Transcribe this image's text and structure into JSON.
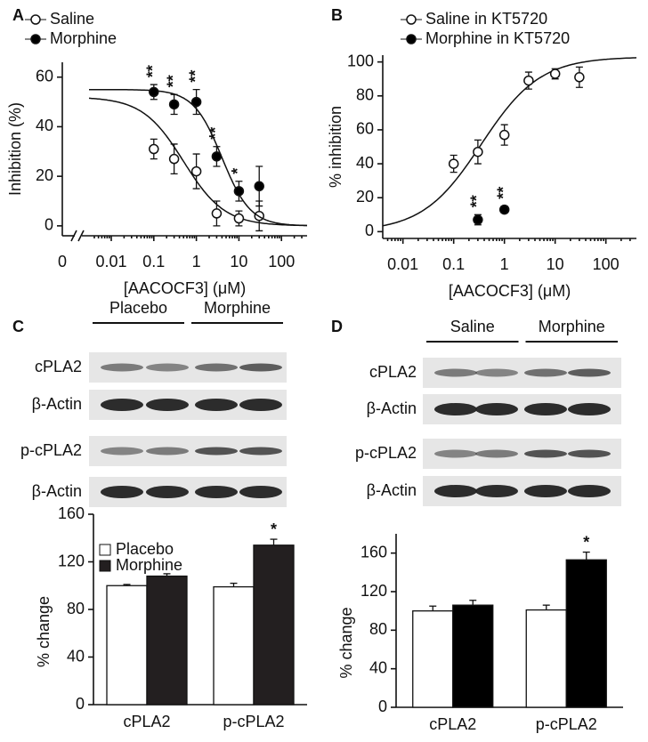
{
  "chart_data": [
    {
      "type": "scatter",
      "panel_label": "A",
      "x_label": "[AACOCF3] (μM)",
      "y_label": "Inhibition (%)",
      "xscale": "log",
      "xlim": [
        0.003,
        400
      ],
      "xticks": [
        0.01,
        0.1,
        1,
        10,
        100
      ],
      "xbreak_label": "0",
      "ylim": [
        -4,
        66
      ],
      "yticks": [
        0,
        20,
        40,
        60
      ],
      "series": [
        {
          "name": "Saline",
          "color": "#ffffff",
          "x": [
            0.1,
            0.3,
            1,
            3,
            10,
            30
          ],
          "values": [
            31,
            27,
            22,
            5,
            3,
            4
          ],
          "errors": [
            4,
            6,
            7,
            5,
            3,
            6
          ],
          "fit": {
            "bottom": 0,
            "top": 52,
            "x50": 0.5,
            "hill": -0.9
          }
        },
        {
          "name": "Morphine",
          "color": "#000000",
          "x": [
            0.1,
            0.3,
            1,
            3,
            10,
            30
          ],
          "values": [
            54,
            49,
            50,
            28,
            14,
            16
          ],
          "errors": [
            3,
            4,
            5,
            4,
            4,
            8
          ],
          "significance": [
            "**",
            "**",
            "**",
            "**",
            "*",
            null
          ],
          "fit": {
            "bottom": 0,
            "top": 55,
            "x50": 4,
            "hill": -1.3
          }
        }
      ]
    },
    {
      "type": "scatter",
      "panel_label": "B",
      "x_label": "[AACOCF3] (μM)",
      "y_label": "% inhibition",
      "xscale": "log",
      "xlim": [
        0.004,
        400
      ],
      "xticks": [
        0.01,
        0.1,
        1,
        10,
        100
      ],
      "ylim": [
        -4,
        104
      ],
      "yticks": [
        0,
        20,
        40,
        60,
        80,
        100
      ],
      "series": [
        {
          "name": "Saline in KT5720",
          "color": "#ffffff",
          "x": [
            0.1,
            0.3,
            1,
            3,
            10,
            30
          ],
          "values": [
            40,
            47,
            57,
            89,
            93,
            91
          ],
          "errors": [
            5,
            7,
            6,
            5,
            3,
            6
          ],
          "fit": {
            "bottom": 0,
            "top": 103,
            "x50": 0.35,
            "hill": 0.75
          }
        },
        {
          "name": "Morphine in KT5720",
          "color": "#000000",
          "x": [
            0.3,
            1
          ],
          "values": [
            7,
            13
          ],
          "errors": [
            3,
            2
          ],
          "significance": [
            "**",
            "**"
          ]
        }
      ]
    },
    {
      "type": "bar",
      "panel_label": "C",
      "y_label": "% change",
      "categories": [
        "cPLA2",
        "p-cPLA2"
      ],
      "ylim": [
        0,
        160
      ],
      "yticks": [
        0,
        40,
        80,
        120,
        160
      ],
      "legend": "upper left",
      "series": [
        {
          "name": "Placebo",
          "color": "#ffffff",
          "values": [
            100,
            99
          ],
          "errors": [
            1,
            3
          ]
        },
        {
          "name": "Morphine",
          "color": "#231f20",
          "values": [
            108,
            134
          ],
          "errors": [
            2,
            5
          ],
          "significance": [
            null,
            "*"
          ]
        }
      ]
    },
    {
      "type": "bar",
      "panel_label": "D",
      "y_label": "% change",
      "categories": [
        "cPLA2",
        "p-cPLA2"
      ],
      "ylim": [
        0,
        180
      ],
      "yticks": [
        0,
        40,
        80,
        120,
        160
      ],
      "series": [
        {
          "color": "#ffffff",
          "values": [
            100,
            101
          ],
          "errors": [
            5,
            5
          ]
        },
        {
          "color": "#000000",
          "values": [
            106,
            153
          ],
          "errors": [
            5,
            8
          ],
          "significance": [
            null,
            "*"
          ]
        }
      ]
    }
  ],
  "blots": [
    {
      "groups": [
        "Placebo",
        "Morphine"
      ],
      "rows": [
        "cPLA2",
        "β-Actin",
        "p-cPLA2",
        "β-Actin"
      ]
    },
    {
      "groups": [
        "Saline",
        "Morphine"
      ],
      "rows": [
        "cPLA2",
        "β-Actin",
        "p-cPLA2",
        "β-Actin"
      ]
    }
  ]
}
